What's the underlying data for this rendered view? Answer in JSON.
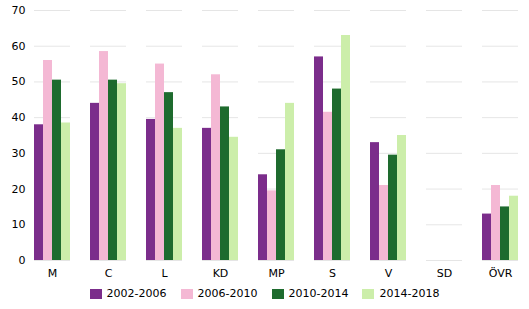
{
  "chart_data": {
    "type": "bar",
    "categories": [
      "M",
      "C",
      "L",
      "KD",
      "MP",
      "S",
      "V",
      "SD",
      "ÖVR"
    ],
    "series": [
      {
        "name": "2002-2006",
        "color": "#7b2d8b",
        "values": [
          38,
          44,
          39.5,
          37,
          24,
          57,
          33,
          0,
          13
        ]
      },
      {
        "name": "2006-2010",
        "color": "#f4b8d4",
        "values": [
          56,
          58.5,
          55,
          52,
          19.5,
          41.5,
          21,
          0,
          21
        ]
      },
      {
        "name": "2010-2014",
        "color": "#1e6b2e",
        "values": [
          50.5,
          50.5,
          47,
          43,
          31,
          48,
          29.5,
          0,
          15
        ]
      },
      {
        "name": "2014-2018",
        "color": "#cceeaa",
        "values": [
          38.5,
          49.5,
          37,
          34.5,
          44,
          63,
          35,
          0,
          18
        ]
      }
    ],
    "ylim": [
      0,
      70
    ],
    "yticks": [
      0,
      10,
      20,
      30,
      40,
      50,
      60,
      70
    ],
    "grid": true,
    "legend": "bottom"
  }
}
